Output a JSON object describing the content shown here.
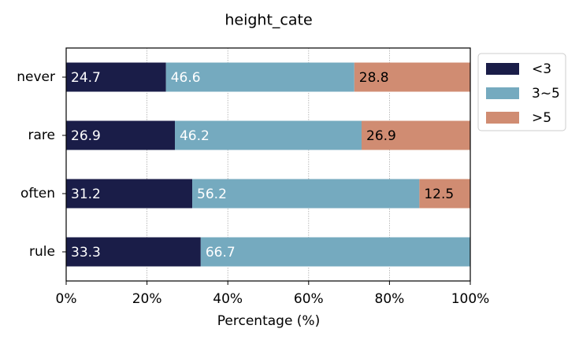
{
  "chart_data": {
    "type": "stacked_barh",
    "title": "height_cate",
    "xlabel": "Percentage (%)",
    "categories": [
      "never",
      "rare",
      "often",
      "rule"
    ],
    "series": [
      {
        "name": "<3",
        "color": "#1a1d48",
        "text_color": "#ffffff",
        "values": [
          24.7,
          26.9,
          31.2,
          33.3
        ]
      },
      {
        "name": "3~5",
        "color": "#75aabf",
        "text_color": "#ffffff",
        "values": [
          46.6,
          46.2,
          56.2,
          66.7
        ]
      },
      {
        "name": ">5",
        "color": "#d08c72",
        "text_color": "#000000",
        "values": [
          28.8,
          26.9,
          12.5,
          null
        ]
      }
    ],
    "xlim": [
      0,
      100
    ],
    "xticks": [
      {
        "value": 0,
        "label": "0%"
      },
      {
        "value": 20,
        "label": "20%"
      },
      {
        "value": 40,
        "label": "40%"
      },
      {
        "value": 60,
        "label": "60%"
      },
      {
        "value": 80,
        "label": "80%"
      },
      {
        "value": 100,
        "label": "100%"
      }
    ],
    "grid": true,
    "legend": "upper right outside"
  }
}
